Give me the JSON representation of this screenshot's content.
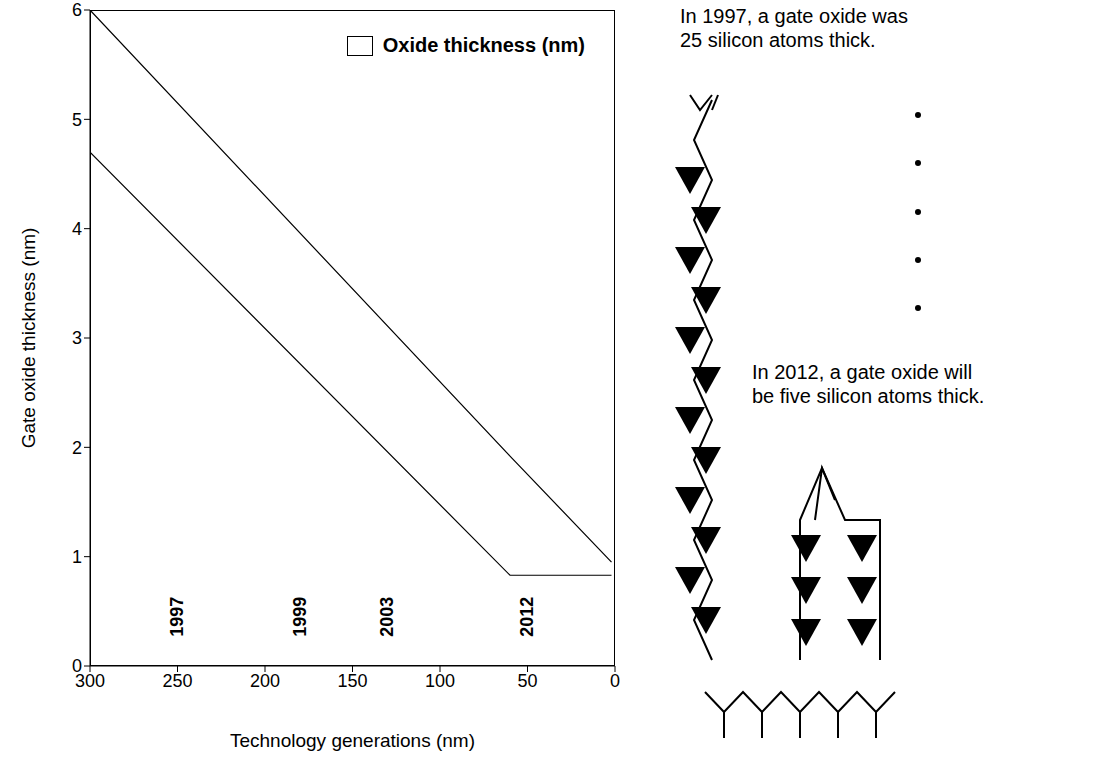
{
  "chart_data": {
    "type": "line",
    "xlabel": "Technology generations (nm)",
    "ylabel": "Gate oxide thickness (nm)",
    "x": [
      300,
      60,
      2
    ],
    "series": [
      {
        "name": "Oxide thickness (nm)",
        "color": "#000000",
        "values": [
          6,
          1.92,
          0.95
        ]
      },
      {
        "color": "#000000",
        "values": [
          4.7,
          0.83,
          0.83
        ]
      }
    ],
    "xlim": [
      300,
      0
    ],
    "xticks": [
      300,
      250,
      200,
      150,
      100,
      50,
      0
    ],
    "ylim": [
      0,
      6
    ],
    "yticks": [
      0,
      1,
      2,
      3,
      4,
      5,
      6
    ],
    "grid": false,
    "legend": "top right",
    "annotations": [
      {
        "text": "1997",
        "x": 250,
        "y": 0.45
      },
      {
        "text": "1999",
        "x": 180,
        "y": 0.45
      },
      {
        "text": "2003",
        "x": 130,
        "y": 0.45
      },
      {
        "text": "2012",
        "x": 50,
        "y": 0.45
      }
    ],
    "captions": [
      "In 1997, a gate oxide was 25 silicon atoms thick.",
      "In 2012, a gate oxide will be five silicon atoms thick."
    ]
  }
}
